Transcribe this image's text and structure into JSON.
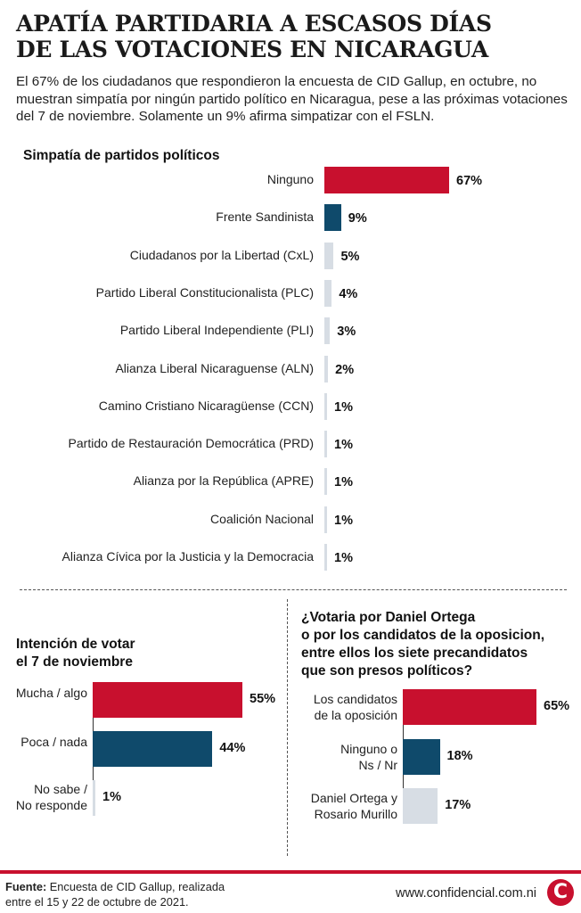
{
  "title_lines": [
    "APATÍA PARTIDARIA A ESCASOS DÍAS",
    "DE LAS VOTACIONES EN NICARAGUA"
  ],
  "intro": "El 67% de los ciudadanos que respondieron la encuesta de CID Gallup, en octubre, no muestran simpatía por ningún partido político en Nicaragua, pese a las próximas votaciones del 7 de noviembre. Solamente un 9% afirma simpatizar con el FSLN.",
  "colors": {
    "red": "#c8102e",
    "blue": "#0f4a6b",
    "light": "#d7dde4"
  },
  "chart_data": [
    {
      "type": "bar",
      "title": "Simpatía de partidos políticos",
      "categories": [
        "Ninguno",
        "Frente Sandinista",
        "Ciudadanos por la Libertad (CxL)",
        "Partido Liberal Constitucionalista (PLC)",
        "Partido Liberal Independiente (PLI)",
        "Alianza Liberal Nicaraguense (ALN)",
        "Camino Cristiano Nicaragüense (CCN)",
        "Partido de Restauración Democrática (PRD)",
        "Alianza por la República (APRE)",
        "Coalición Nacional",
        "Alianza Cívica por la Justicia y la Democracia"
      ],
      "values": [
        67,
        9,
        5,
        4,
        3,
        2,
        1,
        1,
        1,
        1,
        1
      ],
      "value_labels": [
        "67%",
        "9%",
        "5%",
        "4%",
        "3%",
        "2%",
        "1%",
        "1%",
        "1%",
        "1%",
        "1%"
      ],
      "bar_colors": [
        "red",
        "blue",
        "light",
        "light",
        "light",
        "light",
        "light",
        "light",
        "light",
        "light",
        "light"
      ]
    },
    {
      "type": "bar",
      "title_lines": [
        "Intención de votar",
        "el 7 de noviembre"
      ],
      "categories": [
        [
          "Mucha / algo"
        ],
        [
          "Poca / nada"
        ],
        [
          "No sabe /",
          "No responde"
        ]
      ],
      "values": [
        55,
        44,
        1
      ],
      "value_labels": [
        "55%",
        "44%",
        "1%"
      ],
      "bar_colors": [
        "red",
        "blue",
        "light"
      ]
    },
    {
      "type": "bar",
      "title_lines": [
        "¿Votaria por Daniel Ortega",
        "o por los candidatos de la oposicion,",
        "entre ellos los siete precandidatos",
        "que son presos políticos?"
      ],
      "categories": [
        [
          "Los candidatos",
          "de la oposición"
        ],
        [
          "Ninguno o",
          "Ns / Nr"
        ],
        [
          "Daniel Ortega y",
          "Rosario Murillo"
        ]
      ],
      "values": [
        65,
        18,
        17
      ],
      "value_labels": [
        "65%",
        "18%",
        "17%"
      ],
      "bar_colors": [
        "red",
        "blue",
        "light"
      ]
    }
  ],
  "footer": {
    "source_label": "Fuente:",
    "source_line1": " Encuesta de CID Gallup, realizada",
    "source_line2": "entre el 15 y 22 de octubre de 2021.",
    "url": "www.confidencial.com.ni",
    "logo_letter": "C"
  }
}
